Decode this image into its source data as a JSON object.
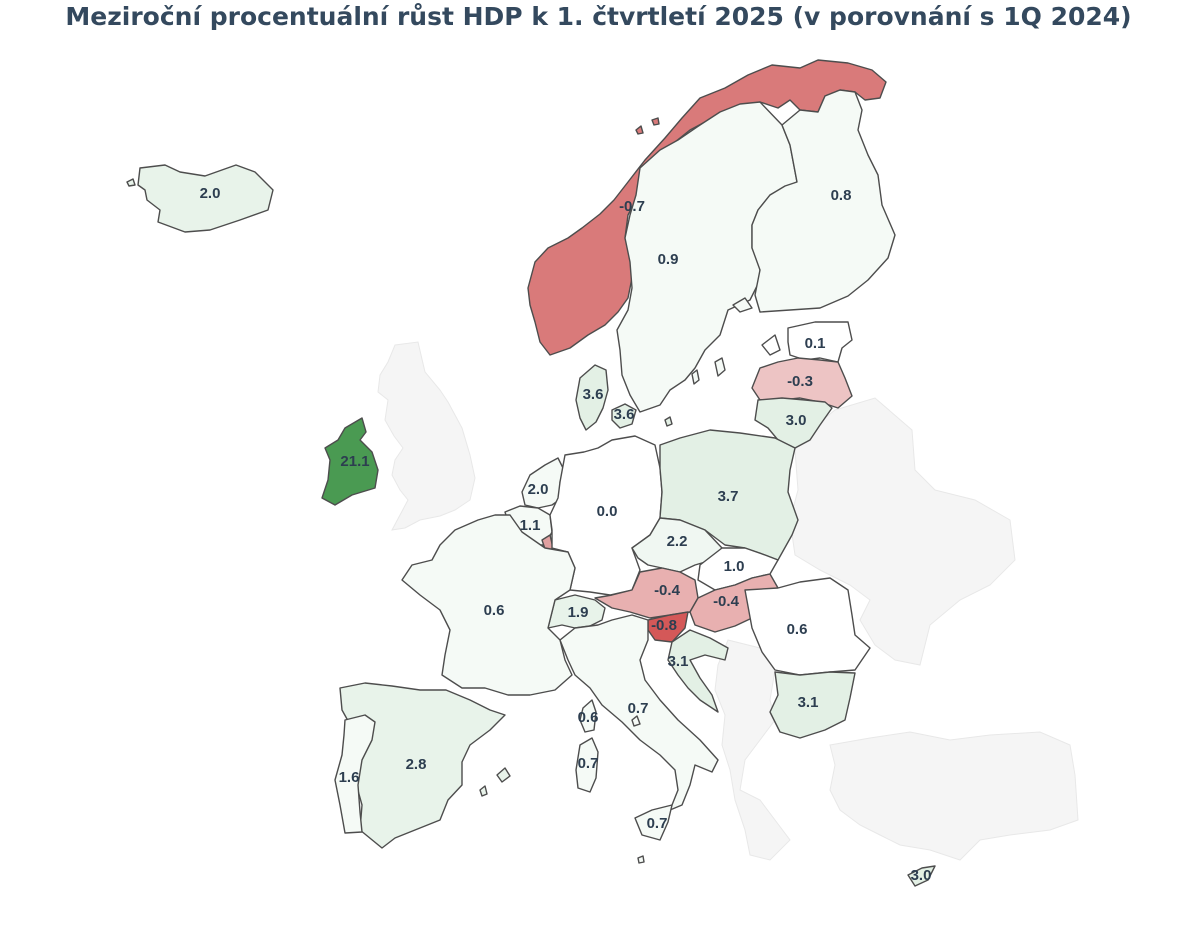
{
  "title": "Meziroční procentuální růst HDP k 1. čtvrtletí 2025 (v porovnání s 1Q 2024)",
  "colors": {
    "strong_positive": "#4a9a52",
    "light_positive": "#e3f0e5",
    "near_zero_positive": "#f6faf7",
    "zero": "#ffffff",
    "light_negative": "#edc4c4",
    "mid_negative": "#e8b0b0",
    "negative": "#d97a7a",
    "strong_negative": "#d45858",
    "context": "#f5f5f5"
  },
  "countries": [
    {
      "id": "iceland",
      "value": "2.0"
    },
    {
      "id": "norway",
      "value": "-0.7"
    },
    {
      "id": "sweden",
      "value": "0.9"
    },
    {
      "id": "finland",
      "value": "0.8"
    },
    {
      "id": "estonia",
      "value": "0.1"
    },
    {
      "id": "latvia",
      "value": "-0.3"
    },
    {
      "id": "lithuania",
      "value": "3.0"
    },
    {
      "id": "denmark",
      "value": "3.6"
    },
    {
      "id": "denmark-islands",
      "value": "3.6"
    },
    {
      "id": "ireland",
      "value": "21.1"
    },
    {
      "id": "netherlands",
      "value": "2.0"
    },
    {
      "id": "belgium",
      "value": "1.1"
    },
    {
      "id": "germany",
      "value": "0.0"
    },
    {
      "id": "poland",
      "value": "3.7"
    },
    {
      "id": "czechia",
      "value": "2.2"
    },
    {
      "id": "slovakia",
      "value": "1.0"
    },
    {
      "id": "austria",
      "value": "-0.4"
    },
    {
      "id": "hungary",
      "value": "-0.4"
    },
    {
      "id": "slovenia",
      "value": "-0.8"
    },
    {
      "id": "croatia",
      "value": "3.1"
    },
    {
      "id": "switzerland",
      "value": "1.9"
    },
    {
      "id": "france",
      "value": "0.6"
    },
    {
      "id": "romania",
      "value": "0.6"
    },
    {
      "id": "bulgaria",
      "value": "3.1"
    },
    {
      "id": "spain",
      "value": "2.8"
    },
    {
      "id": "portugal",
      "value": "1.6"
    },
    {
      "id": "italy",
      "value": "0.7"
    },
    {
      "id": "corsica",
      "value": "0.6"
    },
    {
      "id": "sardinia",
      "value": "0.7"
    },
    {
      "id": "sicily",
      "value": "0.7"
    },
    {
      "id": "cyprus",
      "value": "3.0"
    }
  ]
}
